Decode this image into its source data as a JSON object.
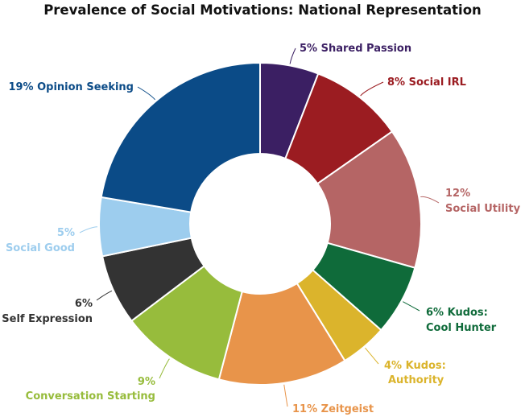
{
  "chart_data": {
    "type": "pie",
    "style": "donut",
    "title": "Prevalence of Social Motivations: National Representation",
    "slices": [
      {
        "value": 5,
        "label_lines": [
          "5% Shared Passion"
        ],
        "color": "#3b1f63"
      },
      {
        "value": 8,
        "label_lines": [
          "8% Social IRL"
        ],
        "color": "#9b1c21"
      },
      {
        "value": 12,
        "label_lines": [
          "12%",
          "Social Utility"
        ],
        "color": "#b56565"
      },
      {
        "value": 6,
        "label_lines": [
          "6% Kudos:",
          "Cool Hunter"
        ],
        "color": "#0f6b3a"
      },
      {
        "value": 4,
        "label_lines": [
          "4% Kudos:",
          "Authority"
        ],
        "color": "#dbb42c"
      },
      {
        "value": 11,
        "label_lines": [
          "11% Zeitgeist"
        ],
        "color": "#e8944a"
      },
      {
        "value": 9,
        "label_lines": [
          "9%",
          "Conversation Starting"
        ],
        "color": "#97bc3c"
      },
      {
        "value": 6,
        "label_lines": [
          "6%",
          "Self Expression"
        ],
        "color": "#333333"
      },
      {
        "value": 5,
        "label_lines": [
          "5%",
          "Social Good"
        ],
        "color": "#9dcdee"
      },
      {
        "value": 19,
        "label_lines": [
          "19% Opinion Seeking"
        ],
        "color": "#0b4b87"
      }
    ]
  }
}
